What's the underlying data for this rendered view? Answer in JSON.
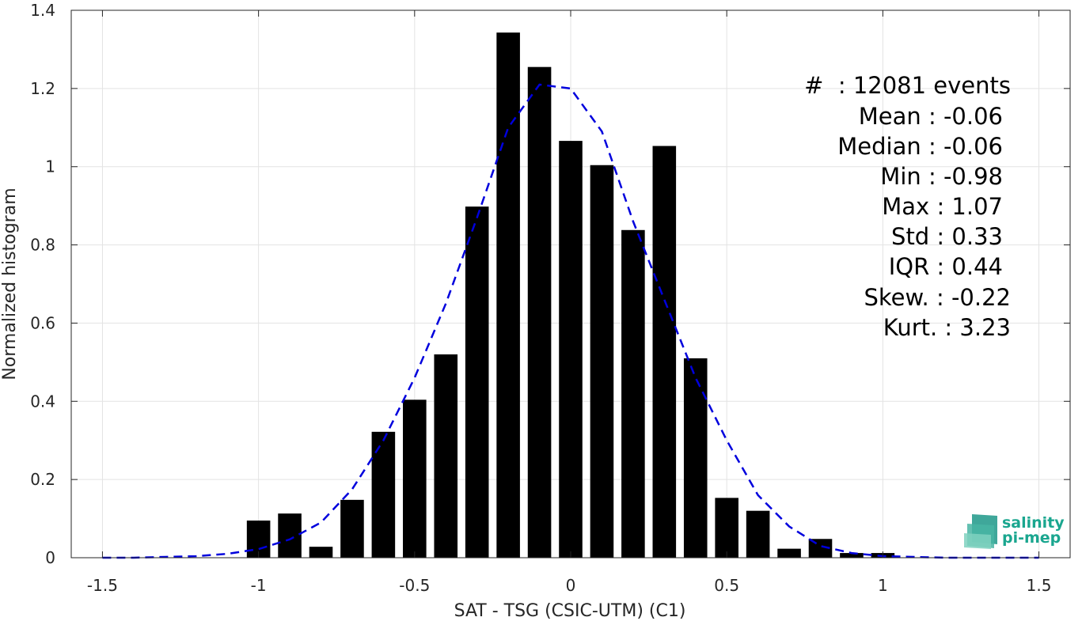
{
  "chart_data": {
    "type": "bar",
    "xlabel": "SAT - TSG (CSIC-UTM) (C1)",
    "ylabel": "Normalized histogram",
    "xlim": [
      -1.6,
      1.6
    ],
    "ylim": [
      0,
      1.4
    ],
    "x_ticks": [
      -1.5,
      -1,
      -0.5,
      0,
      0.5,
      1,
      1.5
    ],
    "x_tick_labels": [
      "-1.5",
      "-1",
      "-0.5",
      "0",
      "0.5",
      "1",
      "1.5"
    ],
    "y_ticks": [
      0,
      0.2,
      0.4,
      0.6,
      0.8,
      1,
      1.2,
      1.4
    ],
    "y_tick_labels": [
      "0",
      "0.2",
      "0.4",
      "0.6",
      "0.8",
      "1",
      "1.2",
      "1.4"
    ],
    "grid": true,
    "bars": {
      "x": [
        -1.0,
        -0.9,
        -0.8,
        -0.7,
        -0.6,
        -0.5,
        -0.4,
        -0.3,
        -0.2,
        -0.1,
        0.0,
        0.1,
        0.2,
        0.3,
        0.4,
        0.5,
        0.6,
        0.7,
        0.8,
        0.9,
        1.0
      ],
      "values": [
        0.095,
        0.113,
        0.028,
        0.148,
        0.322,
        0.404,
        0.52,
        0.898,
        1.343,
        1.255,
        1.066,
        1.004,
        0.838,
        1.053,
        0.51,
        0.153,
        0.12,
        0.023,
        0.048,
        0.012,
        0.012
      ],
      "color": "#000000"
    },
    "fit_curve": {
      "style": "dashed",
      "color": "#0000dd",
      "x": [
        -1.5,
        -1.4,
        -1.3,
        -1.2,
        -1.1,
        -1.0,
        -0.9,
        -0.8,
        -0.7,
        -0.6,
        -0.5,
        -0.4,
        -0.3,
        -0.2,
        -0.1,
        0.0,
        0.1,
        0.2,
        0.3,
        0.4,
        0.5,
        0.6,
        0.7,
        0.8,
        0.9,
        1.0,
        1.1,
        1.2,
        1.3,
        1.4,
        1.5
      ],
      "y": [
        0.0,
        0.0,
        0.002,
        0.004,
        0.01,
        0.022,
        0.047,
        0.09,
        0.175,
        0.3,
        0.46,
        0.65,
        0.87,
        1.1,
        1.21,
        1.2,
        1.09,
        0.86,
        0.66,
        0.46,
        0.3,
        0.16,
        0.08,
        0.03,
        0.012,
        0.004,
        0.002,
        0.0,
        0.0,
        0.0,
        0.0
      ]
    },
    "annotations": [
      "#  : 12081 events",
      "Mean : -0.06",
      "Median : -0.06",
      "Min : -0.98",
      "Max : 1.07",
      "Std : 0.33",
      "IQR : 0.44",
      "Skew. : -0.22",
      "Kurt. : 3.23"
    ]
  },
  "logo": {
    "line1": "salinity",
    "line2": "pi-mep",
    "color": "#1aa68f"
  }
}
